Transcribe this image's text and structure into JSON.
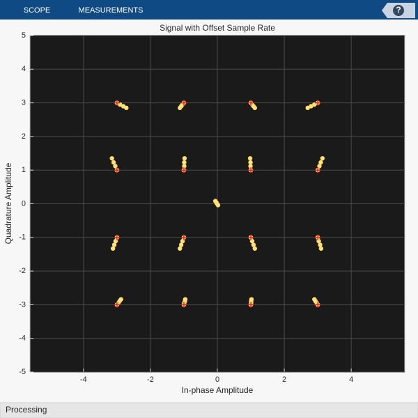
{
  "toolbar": {
    "tabs": [
      "SCOPE",
      "MEASUREMENTS"
    ],
    "help": "?"
  },
  "status": "Processing",
  "chart_data": {
    "type": "scatter",
    "title": "Signal with Offset Sample Rate",
    "x_label": "In-phase Amplitude",
    "y_label": "Quadrature Amplitude",
    "xlim": [
      -5.6,
      5.6
    ],
    "ylim": [
      -5,
      5
    ],
    "xticks": [
      -4,
      -2,
      0,
      2,
      4
    ],
    "yticks": [
      -5,
      -4,
      -3,
      -2,
      -1,
      0,
      1,
      2,
      3,
      4,
      5
    ],
    "grid": true,
    "series": [
      {
        "color": "#ffe070",
        "marker": "dot",
        "x": [
          -3,
          -2.91,
          -2.81,
          -2.72,
          -1,
          -1.04,
          -1.08,
          -1.12,
          1,
          1.04,
          1.08,
          1.12,
          3,
          2.9,
          2.8,
          2.7,
          -3,
          -3.05,
          -3.1,
          -3.15,
          -1,
          -0.99,
          -0.99,
          -0.98,
          1,
          0.99,
          0.99,
          0.98,
          3,
          3.05,
          3.09,
          3.14,
          -0.06,
          -0.03,
          -0.01,
          0.02,
          -3,
          -3.04,
          -3.08,
          -3.12,
          -1,
          -1.04,
          -1.08,
          -1.12,
          1,
          1.04,
          1.08,
          1.12,
          3,
          3.03,
          3.07,
          3.1,
          -3,
          -2.96,
          -2.92,
          -2.88,
          -1,
          -0.99,
          -0.97,
          -0.96,
          1,
          1.01,
          1.01,
          1.02,
          3,
          2.97,
          2.93,
          2.9
        ],
        "y": [
          3,
          2.95,
          2.9,
          2.85,
          3,
          2.95,
          2.9,
          2.85,
          3,
          2.95,
          2.9,
          2.85,
          3,
          2.95,
          2.9,
          2.85,
          1,
          1.12,
          1.23,
          1.35,
          1,
          1.12,
          1.23,
          1.35,
          1,
          1.12,
          1.23,
          1.35,
          1,
          1.12,
          1.23,
          1.35,
          0.08,
          0.04,
          0,
          -0.04,
          -1,
          -1.11,
          -1.22,
          -1.33,
          -1,
          -1.11,
          -1.22,
          -1.33,
          -1,
          -1.11,
          -1.22,
          -1.33,
          -1,
          -1.11,
          -1.22,
          -1.33,
          -3,
          -2.95,
          -2.89,
          -2.84,
          -3,
          -2.95,
          -2.89,
          -2.84,
          -3,
          -2.95,
          -2.89,
          -2.84,
          -3,
          -2.95,
          -2.89,
          -2.84
        ]
      },
      {
        "color": "#ff1a1a",
        "marker": "plus",
        "x": [
          -3,
          -1,
          1,
          3,
          -3,
          -1,
          1,
          3,
          -3,
          -1,
          1,
          3,
          -3,
          -1,
          1,
          3
        ],
        "y": [
          3,
          3,
          3,
          3,
          1,
          1,
          1,
          1,
          -1,
          -1,
          -1,
          -1,
          -3,
          -3,
          -3,
          -3
        ]
      }
    ]
  }
}
